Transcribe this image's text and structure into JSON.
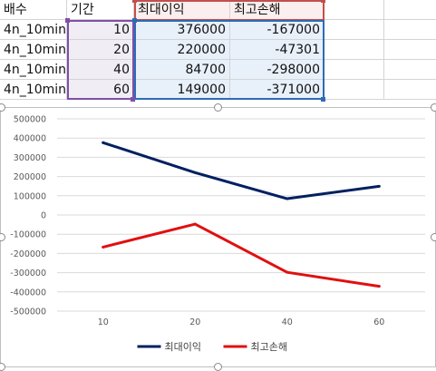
{
  "sheet": {
    "headers": [
      "배수",
      "기간",
      "최대이익",
      "최고손해"
    ],
    "rows": [
      [
        "4n_10min",
        "10",
        "376000",
        "-167000"
      ],
      [
        "4n_10min",
        "20",
        "220000",
        "-47301"
      ],
      [
        "4n_10min",
        "40",
        "84700",
        "-298000"
      ],
      [
        "4n_10min",
        "60",
        "149000",
        "-371000"
      ]
    ]
  },
  "colors": {
    "series1": "#002060",
    "series2": "#e01010",
    "grid": "#d9d9d9",
    "purple_sel": "#7f4fa8",
    "blue_sel": "#2f6bb5",
    "red_sel": "#c0504d"
  },
  "chart_data": {
    "type": "line",
    "categories": [
      "10",
      "20",
      "40",
      "60"
    ],
    "series": [
      {
        "name": "최대이익",
        "values": [
          376000,
          220000,
          84700,
          149000
        ],
        "color": "#002060"
      },
      {
        "name": "최고손해",
        "values": [
          -167000,
          -47301,
          -298000,
          -371000
        ],
        "color": "#e01010"
      }
    ],
    "yticks": [
      "500000",
      "400000",
      "300000",
      "200000",
      "100000",
      "0",
      "-100000",
      "-200000",
      "-300000",
      "-400000",
      "-500000"
    ],
    "ylim": [
      -500000,
      500000
    ],
    "grid": true,
    "legend": "bottom"
  }
}
